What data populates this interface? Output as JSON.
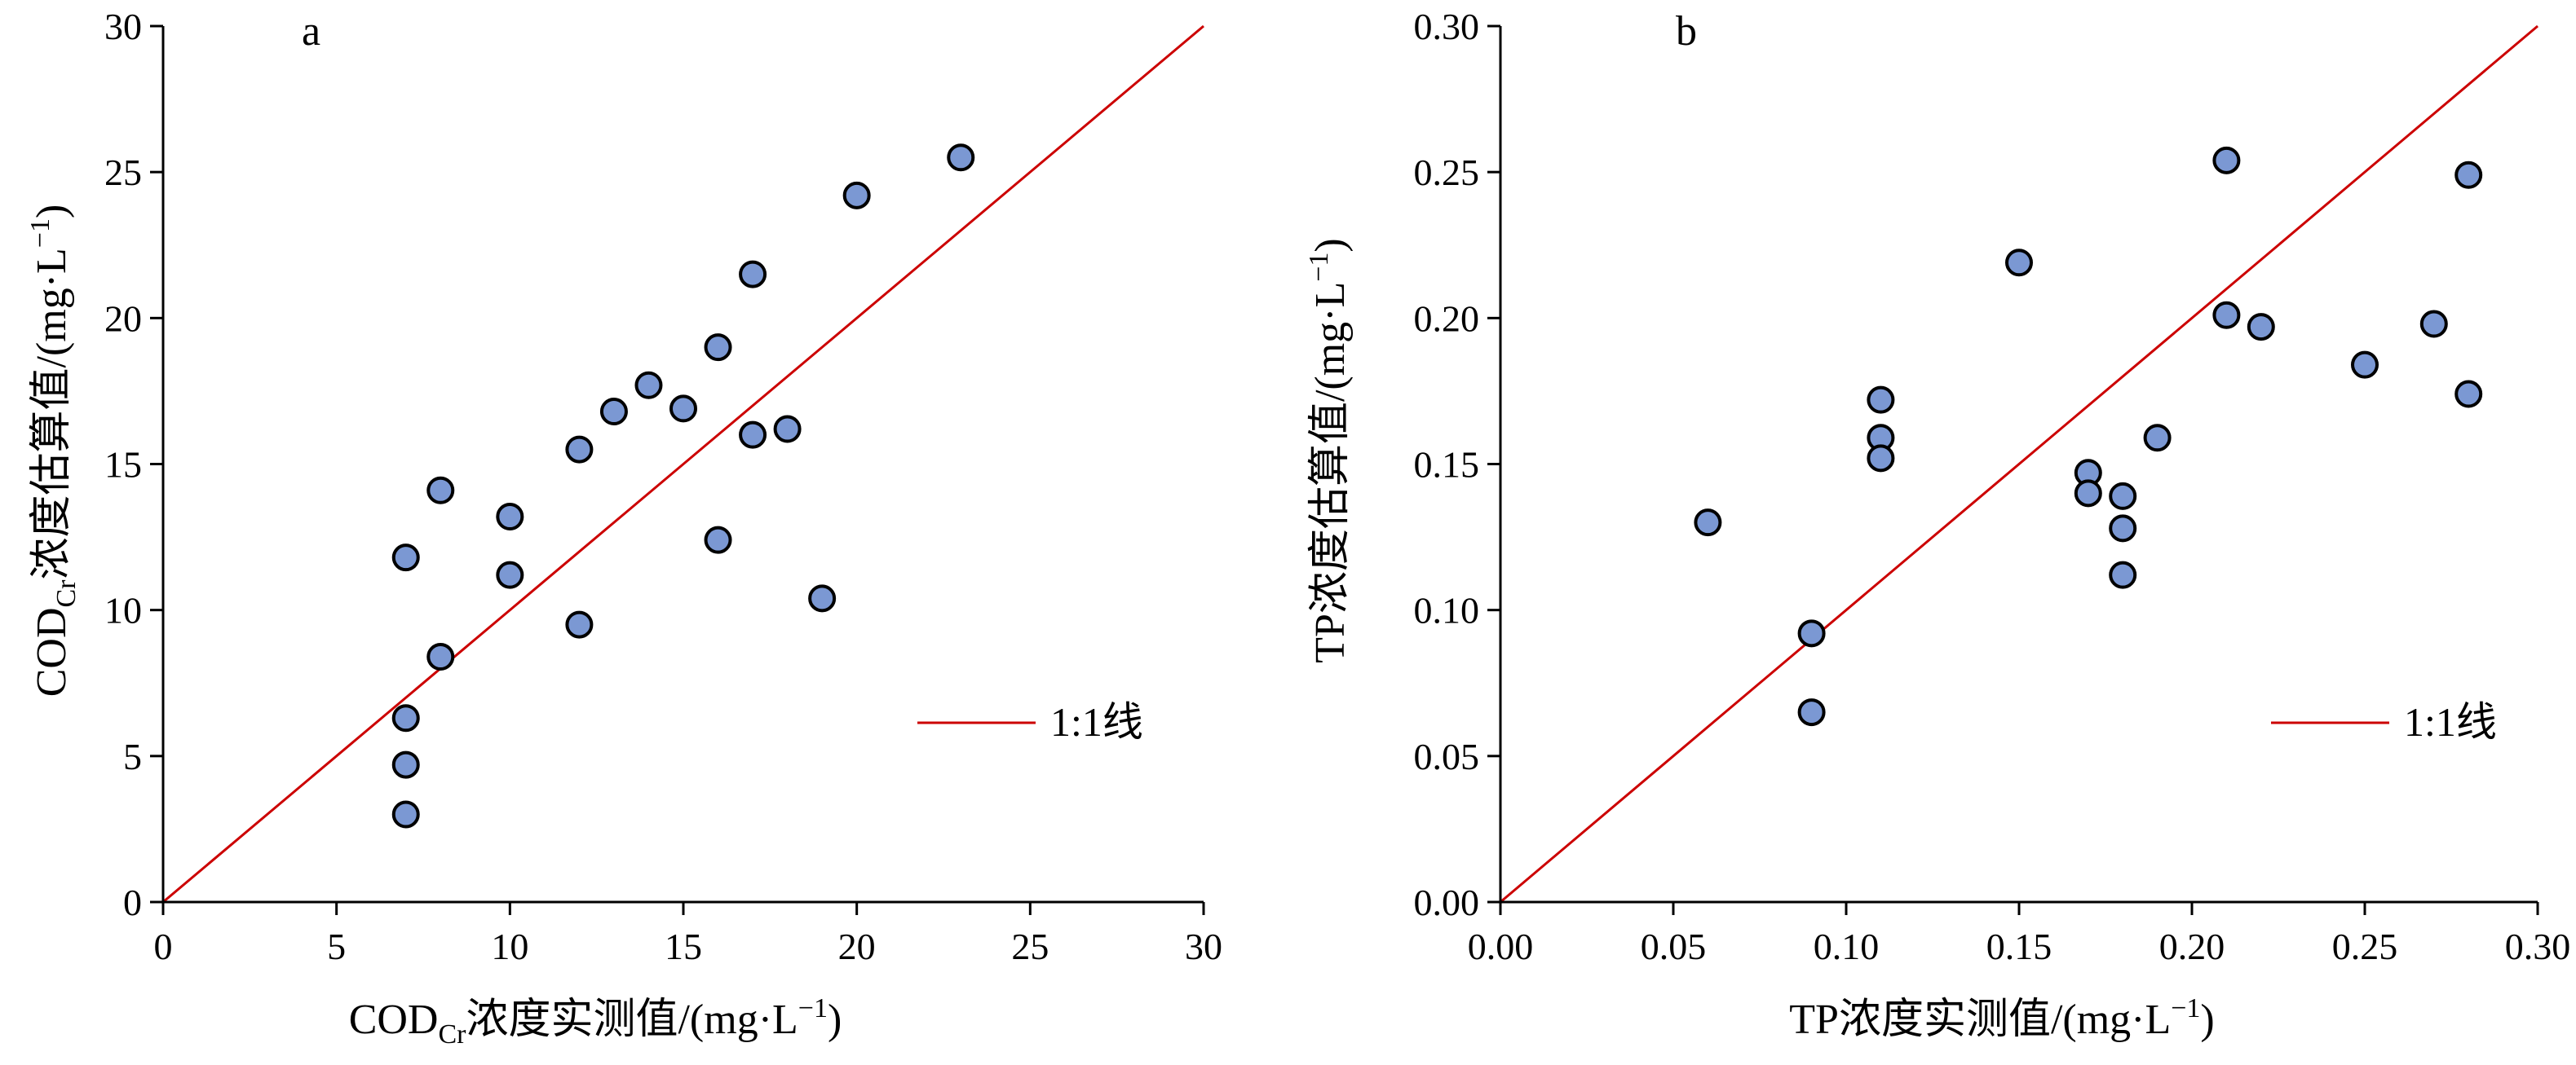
{
  "chart_data": [
    {
      "type": "scatter",
      "panel_label": "a",
      "xlabel": "COD_Cr浓度实测值/(mg·L⁻¹)",
      "ylabel": "COD_Cr浓度估算值/(mg·L⁻¹)",
      "xlabel_parts": {
        "pre": "COD",
        "sub": "Cr",
        "mid": "浓度实测值/(mg·L",
        "sup": "−1",
        "post": ")"
      },
      "ylabel_parts": {
        "pre": "COD",
        "sub": "Cr",
        "mid": "浓度估算值/(mg·L",
        "sup": "−1",
        "post": ")"
      },
      "xlim": [
        0,
        30
      ],
      "ylim": [
        0,
        30
      ],
      "xticks": [
        "0",
        "5",
        "10",
        "15",
        "20",
        "25",
        "30"
      ],
      "yticks": [
        "0",
        "5",
        "10",
        "15",
        "20",
        "25",
        "30"
      ],
      "xtick_values": [
        0,
        5,
        10,
        15,
        20,
        25,
        30
      ],
      "ytick_values": [
        0,
        5,
        10,
        15,
        20,
        25,
        30
      ],
      "reference_line": {
        "label": "1:1线",
        "from": [
          0,
          0
        ],
        "to": [
          30,
          30
        ],
        "color": "#cc0000"
      },
      "legend_position": "right",
      "grid": false,
      "marker_color": "#7b98d3",
      "points": [
        {
          "x": 7,
          "y": 11.8
        },
        {
          "x": 7,
          "y": 6.3
        },
        {
          "x": 7,
          "y": 4.7
        },
        {
          "x": 7,
          "y": 3.0
        },
        {
          "x": 8,
          "y": 14.1
        },
        {
          "x": 8,
          "y": 8.4
        },
        {
          "x": 10,
          "y": 13.2
        },
        {
          "x": 10,
          "y": 11.2
        },
        {
          "x": 12,
          "y": 15.5
        },
        {
          "x": 12,
          "y": 9.5
        },
        {
          "x": 13,
          "y": 16.8
        },
        {
          "x": 14,
          "y": 17.7
        },
        {
          "x": 15,
          "y": 16.9
        },
        {
          "x": 16,
          "y": 19.0
        },
        {
          "x": 16,
          "y": 12.4
        },
        {
          "x": 17,
          "y": 21.5
        },
        {
          "x": 17,
          "y": 16.0
        },
        {
          "x": 18,
          "y": 16.2
        },
        {
          "x": 19,
          "y": 10.4
        },
        {
          "x": 20,
          "y": 24.2
        },
        {
          "x": 23,
          "y": 25.5
        }
      ]
    },
    {
      "type": "scatter",
      "panel_label": "b",
      "xlabel": "TP浓度实测值/(mg·L⁻¹)",
      "ylabel": "TP浓度估算值/(mg·L⁻¹)",
      "xlabel_parts": {
        "pre": "TP",
        "sub": "",
        "mid": "浓度实测值/(mg·L",
        "sup": "−1",
        "post": ")"
      },
      "ylabel_parts": {
        "pre": "TP",
        "sub": "",
        "mid": "浓度估算值/(mg·L",
        "sup": "−1",
        "post": ")"
      },
      "xlim": [
        0,
        0.3
      ],
      "ylim": [
        0,
        0.3
      ],
      "xticks": [
        "0.00",
        "0.05",
        "0.10",
        "0.15",
        "0.20",
        "0.25",
        "0.30"
      ],
      "yticks": [
        "0.00",
        "0.05",
        "0.10",
        "0.15",
        "0.20",
        "0.25",
        "0.30"
      ],
      "xtick_values": [
        0,
        0.05,
        0.1,
        0.15,
        0.2,
        0.25,
        0.3
      ],
      "ytick_values": [
        0,
        0.05,
        0.1,
        0.15,
        0.2,
        0.25,
        0.3
      ],
      "reference_line": {
        "label": "1:1线",
        "from": [
          0,
          0
        ],
        "to": [
          0.3,
          0.3
        ],
        "color": "#cc0000"
      },
      "legend_position": "right",
      "grid": false,
      "marker_color": "#7b98d3",
      "points": [
        {
          "x": 0.06,
          "y": 0.13
        },
        {
          "x": 0.09,
          "y": 0.092
        },
        {
          "x": 0.09,
          "y": 0.065
        },
        {
          "x": 0.11,
          "y": 0.172
        },
        {
          "x": 0.11,
          "y": 0.159
        },
        {
          "x": 0.11,
          "y": 0.152
        },
        {
          "x": 0.15,
          "y": 0.219
        },
        {
          "x": 0.17,
          "y": 0.147
        },
        {
          "x": 0.17,
          "y": 0.14
        },
        {
          "x": 0.18,
          "y": 0.139
        },
        {
          "x": 0.18,
          "y": 0.128
        },
        {
          "x": 0.18,
          "y": 0.112
        },
        {
          "x": 0.19,
          "y": 0.159
        },
        {
          "x": 0.21,
          "y": 0.254
        },
        {
          "x": 0.21,
          "y": 0.201
        },
        {
          "x": 0.22,
          "y": 0.197
        },
        {
          "x": 0.25,
          "y": 0.184
        },
        {
          "x": 0.27,
          "y": 0.198
        },
        {
          "x": 0.28,
          "y": 0.249
        },
        {
          "x": 0.28,
          "y": 0.174
        }
      ]
    }
  ]
}
